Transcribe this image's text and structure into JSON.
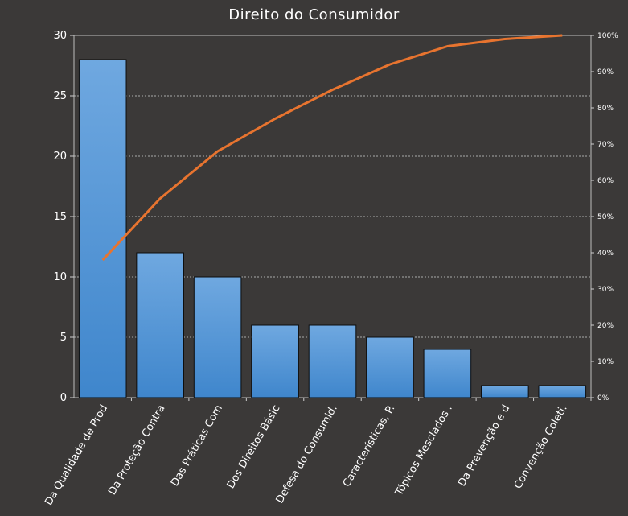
{
  "chart_data": {
    "type": "bar",
    "title": "Direito do Consumidor",
    "xlabel": "",
    "ylabel": "",
    "categories": [
      "Da Qualidade de Prod",
      "Da Proteção Contra",
      "Das Práticas Com",
      "Dos Direitos Básic",
      "Defesa do Consumid.",
      "Características, P.",
      "Tópicos Mesclados .",
      "Da Prevenção e d",
      "Convenção Coleti."
    ],
    "values": [
      28,
      12,
      10,
      6,
      6,
      5,
      4,
      1,
      1
    ],
    "cumulative_percent": [
      38,
      55,
      68,
      77,
      85,
      92,
      97,
      99,
      100
    ],
    "ylim": [
      0,
      30
    ],
    "yticks": [
      0,
      5,
      10,
      15,
      20,
      25,
      30
    ],
    "y2lim": [
      0,
      100
    ],
    "y2ticks": [
      "0%",
      "10%",
      "20%",
      "30%",
      "40%",
      "50%",
      "60%",
      "70%",
      "80%",
      "90%",
      "100%"
    ],
    "grid": true,
    "colors": {
      "background": "#3b3938",
      "bar_top": "#6fa8e0",
      "bar_bottom": "#3f86cc",
      "line": "#e8742f",
      "grid": "#d0d0d0",
      "text": "#ffffff"
    }
  }
}
